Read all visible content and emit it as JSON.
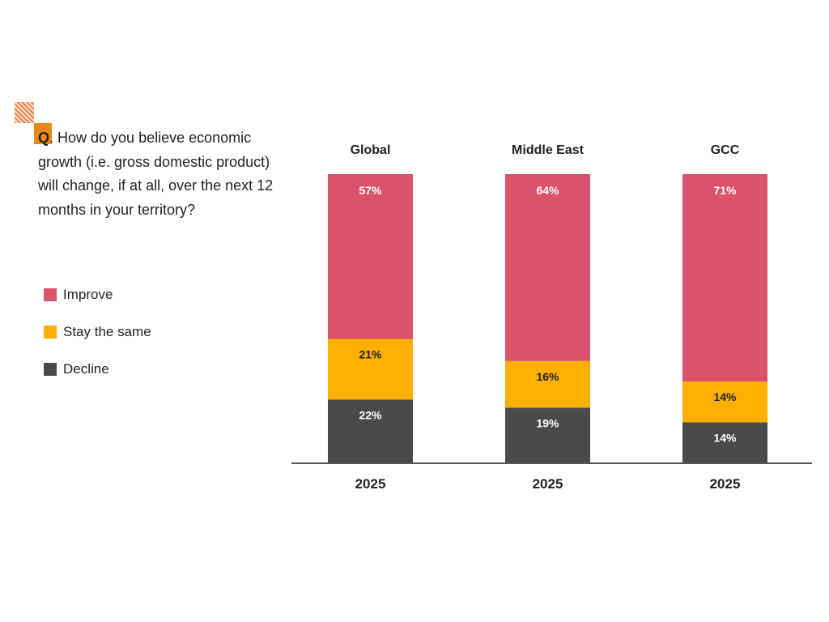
{
  "question": {
    "prefix": "Q",
    "text": ". How do you believe economic growth (i.e. gross domestic product) will change, if at all, over the next 12 months in your territory?"
  },
  "chart_data": {
    "type": "bar",
    "stacked": true,
    "categories": [
      "Global",
      "Middle East",
      "GCC"
    ],
    "x_labels": [
      "2025",
      "2025",
      "2025"
    ],
    "series": [
      {
        "name": "Decline",
        "values": [
          22,
          19,
          14
        ],
        "labels": [
          "22%",
          "19%",
          "14%"
        ],
        "color": "#4a4a4a",
        "label_color": "#ffffff"
      },
      {
        "name": "Stay the same",
        "values": [
          21,
          16,
          14
        ],
        "labels": [
          "21%",
          "16%",
          "14%"
        ],
        "color": "#fdb000",
        "label_color": "#222222"
      },
      {
        "name": "Improve",
        "values": [
          57,
          64,
          71
        ],
        "labels": [
          "57%",
          "64%",
          "71%"
        ],
        "color": "#db536a",
        "label_color": "#ffffff"
      }
    ],
    "legend": [
      "Improve",
      "Stay the same",
      "Decline"
    ],
    "legend_placement": "left",
    "ylim": [
      0,
      100
    ],
    "grid": false
  }
}
